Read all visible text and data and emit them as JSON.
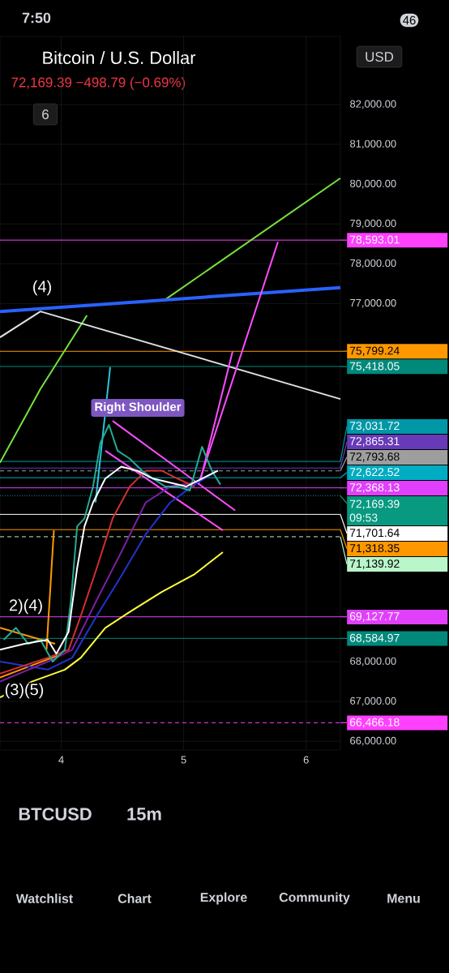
{
  "chart_data": {
    "type": "line",
    "title": "Bitcoin / U.S. Dollar",
    "subtitle": "72,169.39  −498.79 (−0.69%)",
    "xlim": [
      3.5,
      6.28
    ],
    "ylim": [
      65780,
      83710
    ],
    "xticks": [
      4,
      5,
      6
    ],
    "yticks": [
      {
        "value": 66000,
        "label": "66,000.00"
      },
      {
        "value": 67000,
        "label": "67,000.00"
      },
      {
        "value": 68000,
        "label": "68,000.00"
      },
      {
        "value": 77000,
        "label": "77,000.00"
      },
      {
        "value": 78000,
        "label": "78,000.00"
      },
      {
        "value": 79000,
        "label": "79,000.00"
      },
      {
        "value": 80000,
        "label": "80,000.00"
      },
      {
        "value": 81000,
        "label": "81,000.00"
      },
      {
        "value": 82000,
        "label": "82,000.00"
      }
    ],
    "grid": true,
    "marker": "none",
    "series": [
      {
        "type": "line",
        "color": "#ff9800",
        "x": [
          3.5,
          3.95
        ],
        "values": [
          68850,
          68450
        ]
      },
      {
        "type": "line",
        "color": "#ff9800",
        "x": [
          3.5,
          3.97
        ],
        "values": [
          67600,
          68150
        ]
      },
      {
        "type": "line",
        "color": "#ff9800",
        "x": [
          3.88,
          3.94
        ],
        "values": [
          68300,
          71300
        ]
      },
      {
        "type": "line",
        "color": "#76e33a",
        "x": [
          3.5,
          3.83,
          4.21
        ],
        "values": [
          73000,
          74850,
          76700
        ]
      },
      {
        "type": "line",
        "color": "#76e33a",
        "x": [
          4.85,
          6.28
        ],
        "values": [
          77100,
          80150
        ]
      },
      {
        "type": "line",
        "color": "#e0e0e0",
        "x": [
          3.5,
          3.83,
          6.28
        ],
        "values": [
          76150,
          76800,
          74600
        ]
      },
      {
        "type": "line",
        "color": "#2962ff",
        "x": [
          3.5,
          6.28
        ],
        "values": [
          76800,
          77400
        ]
      },
      {
        "type": "line",
        "color": "#26c6da",
        "x": [
          4.4,
          4.28
        ],
        "values": [
          75400,
          72000
        ]
      },
      {
        "type": "line",
        "color": "#ff4dff",
        "x": [
          4.42,
          5.42
        ],
        "values": [
          74050,
          71800
        ]
      },
      {
        "type": "line",
        "color": "#ff4dff",
        "x": [
          4.36,
          5.32
        ],
        "values": [
          73300,
          71300
        ]
      },
      {
        "type": "line",
        "color": "#ff4dff",
        "x": [
          5.12,
          5.77
        ],
        "values": [
          72450,
          78550
        ]
      },
      {
        "type": "line",
        "color": "#ff4dff",
        "x": [
          5.14,
          5.4
        ],
        "values": [
          72600,
          75800
        ]
      },
      {
        "type": "line",
        "color": "#ffff3b",
        "x": [
          3.5,
          3.76,
          4.03,
          4.16,
          4.36,
          4.56,
          4.82,
          5.09,
          5.32
        ],
        "values": [
          67100,
          67500,
          67800,
          68100,
          68850,
          69250,
          69750,
          70200,
          70750
        ]
      },
      {
        "type": "line",
        "color": "#2233cc",
        "x": [
          3.5,
          3.89,
          4.09,
          4.29,
          4.49,
          4.69,
          4.89,
          5.09,
          5.28
        ],
        "values": [
          68000,
          67800,
          68100,
          69150,
          70150,
          71200,
          72000,
          72450,
          72800
        ]
      },
      {
        "type": "line",
        "color": "#7b1fa2",
        "x": [
          3.5,
          3.89,
          4.09,
          4.29,
          4.49,
          4.69,
          4.89,
          5.09
        ],
        "values": [
          67500,
          68000,
          68300,
          69550,
          70750,
          72000,
          72400,
          72500
        ]
      },
      {
        "type": "line",
        "color": "#d32f2f",
        "x": [
          3.5,
          3.89,
          4.06,
          4.16,
          4.29,
          4.42,
          4.56,
          4.69,
          4.82,
          4.95,
          5.09
        ],
        "values": [
          67700,
          68100,
          68300,
          69150,
          70350,
          71600,
          72400,
          72800,
          72800,
          72600,
          72400
        ]
      },
      {
        "type": "line",
        "color": "#22ab94",
        "x": [
          3.53,
          3.63,
          3.73,
          3.83,
          3.93,
          4.03,
          4.08,
          4.13,
          4.19,
          4.26,
          4.32,
          4.39,
          4.46,
          4.56,
          4.66,
          4.75,
          4.85,
          4.95,
          5.05,
          5.15,
          5.23,
          5.3
        ],
        "values": [
          68550,
          68850,
          68450,
          68550,
          68000,
          68300,
          69550,
          71400,
          71600,
          72400,
          73500,
          73950,
          73300,
          73100,
          72800,
          72600,
          72400,
          72400,
          72300,
          73400,
          72800,
          72450
        ]
      },
      {
        "type": "line",
        "color": "#ffffff",
        "x": [
          3.5,
          3.7,
          3.89,
          3.96,
          4.06,
          4.13,
          4.19,
          4.26,
          4.36,
          4.49,
          4.62,
          4.75,
          4.89,
          5.02,
          5.15,
          5.28
        ],
        "values": [
          68300,
          68450,
          68550,
          68200,
          68750,
          70350,
          71400,
          72000,
          72600,
          72900,
          72800,
          72600,
          72500,
          72400,
          72600,
          72800
        ]
      }
    ],
    "ref_lines": [
      {
        "axis": "y",
        "value": 78593.01,
        "label": "78,593.01",
        "color": "#ff40ff"
      },
      {
        "axis": "y",
        "value": 75799.24,
        "label": "75,799.24",
        "color": "#ff9800"
      },
      {
        "axis": "y",
        "value": 75418.05,
        "label": "75,418.05",
        "color": "#00897b"
      },
      {
        "axis": "y",
        "value": 73031.72,
        "label": "73,031.72",
        "color": "#0097a7"
      },
      {
        "axis": "y",
        "value": 72865.31,
        "label": "72,865.31",
        "color": "#673ab7"
      },
      {
        "axis": "y",
        "value": 72793.68,
        "label": "72,793.68",
        "color": "#9e9e9e",
        "line_style": "dashed"
      },
      {
        "axis": "y",
        "value": 72622.52,
        "label": "72,622.52",
        "color": "#00acc1"
      },
      {
        "axis": "y",
        "value": 72368.13,
        "label": "72,368.13",
        "color": "#e040fb"
      },
      {
        "axis": "y",
        "value": 72169.39,
        "label": "72,169.39",
        "color": "#089981",
        "line_style": "dotted"
      },
      {
        "axis": "y",
        "value": 71701.64,
        "label": "71,701.64",
        "color": "#ffffff"
      },
      {
        "axis": "y",
        "value": 71318.35,
        "label": "71,318.35",
        "color": "#ff9800"
      },
      {
        "axis": "y",
        "value": 71139.92,
        "label": "71,139.92",
        "color": "#b9f6ca",
        "line_style": "dashed"
      },
      {
        "axis": "y",
        "value": 69127.77,
        "label": "69,127.77",
        "color": "#e040fb"
      },
      {
        "axis": "y",
        "value": 68584.97,
        "label": "68,584.97",
        "color": "#00897b"
      },
      {
        "axis": "y",
        "value": 66466.18,
        "label": "66,466.18",
        "color": "#ff40ff",
        "line_style": "dashed"
      }
    ],
    "annotations": [
      "09:53",
      "6",
      "USD",
      "7:50",
      "46",
      "BTCUSD",
      "15m",
      "Watchlist",
      "Chart",
      "Explore",
      "Community",
      "Menu",
      "(4)",
      "2)(4)",
      "(3)(5)",
      "Right Shoulder"
    ]
  }
}
